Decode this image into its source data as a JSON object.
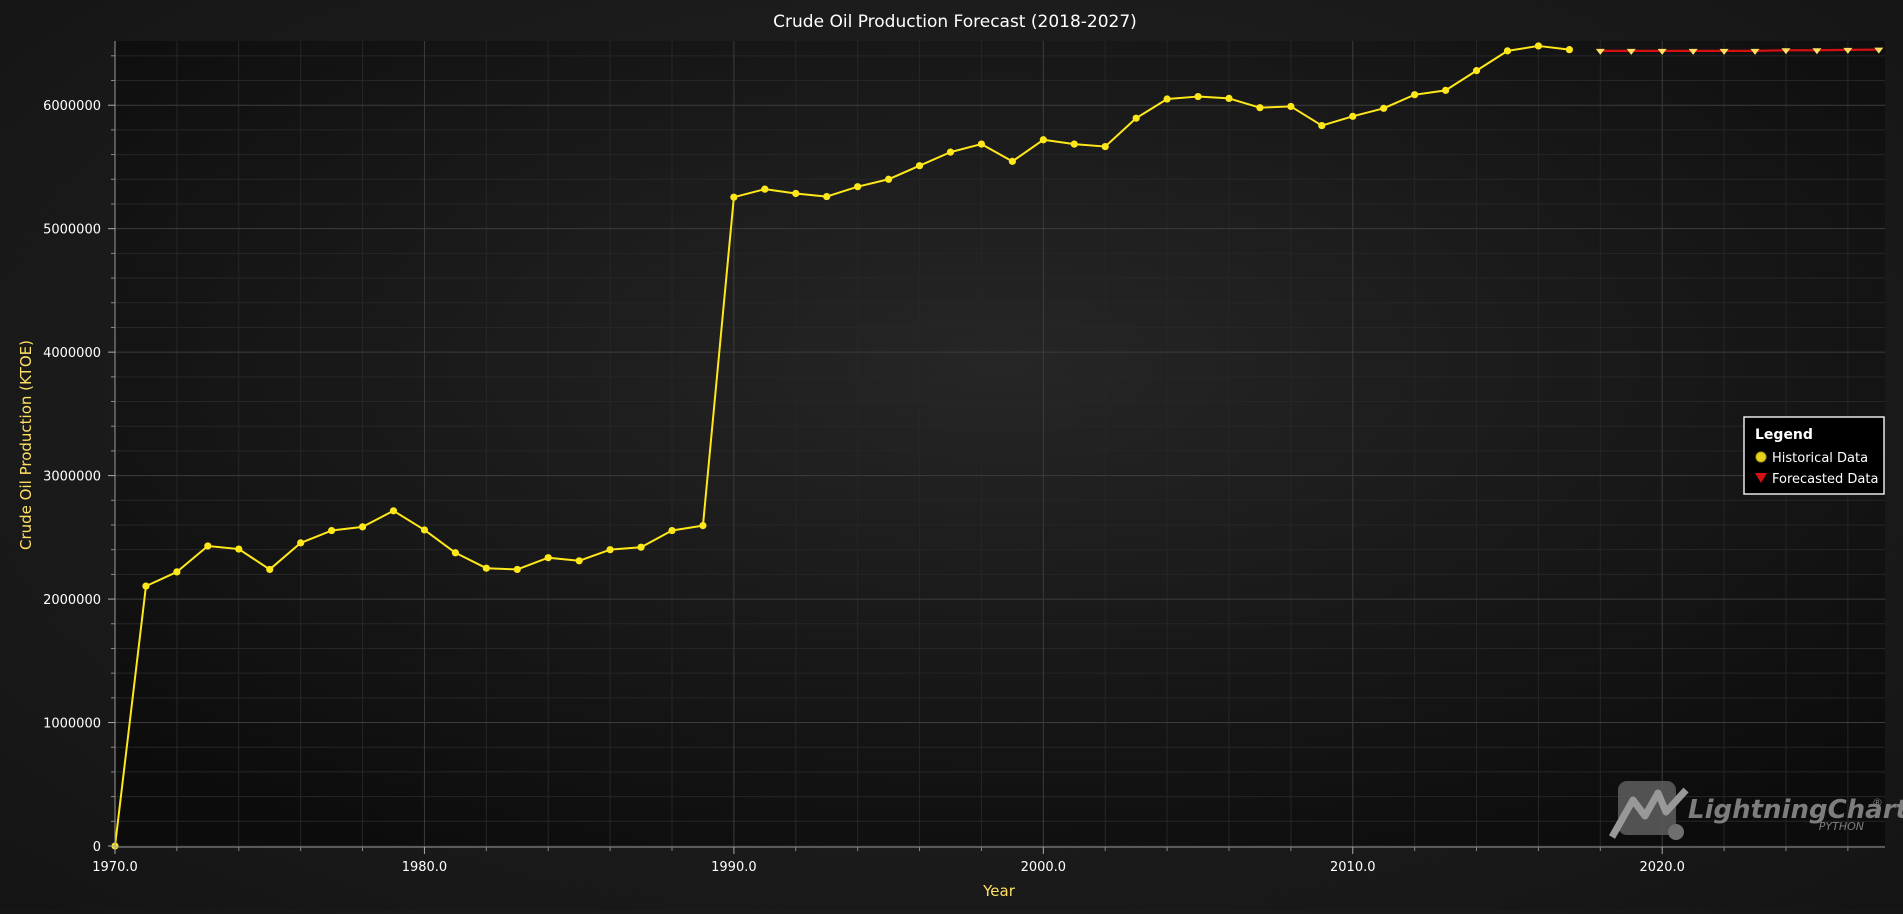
{
  "chart_data": {
    "type": "line",
    "title": "Crude Oil Production Forecast (2018-2027)",
    "xlabel": "Year",
    "ylabel": "Crude Oil Production (KTOE)",
    "xlim": [
      1970,
      2027.2
    ],
    "ylim": [
      0,
      6520000
    ],
    "x_ticks": [
      1970,
      1980,
      1990,
      2000,
      2010,
      2020
    ],
    "x_tick_labels": [
      "1970.0",
      "1980.0",
      "1990.0",
      "2000.0",
      "2010.0",
      "2020.0"
    ],
    "y_ticks": [
      0,
      1000000,
      2000000,
      3000000,
      4000000,
      5000000,
      6000000
    ],
    "y_tick_labels": [
      "0",
      "1000000",
      "2000000",
      "3000000",
      "4000000",
      "5000000",
      "6000000"
    ],
    "grid": true,
    "legend_position": "right",
    "series": [
      {
        "name": "Historical Data",
        "color": "#ffe81a",
        "marker": "circle",
        "x": [
          1970,
          1971,
          1972,
          1973,
          1974,
          1975,
          1976,
          1977,
          1978,
          1979,
          1980,
          1981,
          1982,
          1983,
          1984,
          1985,
          1986,
          1987,
          1988,
          1989,
          1990,
          1991,
          1992,
          1993,
          1994,
          1995,
          1996,
          1997,
          1998,
          1999,
          2000,
          2001,
          2002,
          2003,
          2004,
          2005,
          2006,
          2007,
          2008,
          2009,
          2010,
          2011,
          2012,
          2013,
          2014,
          2015,
          2016,
          2017
        ],
        "y": [
          0,
          2105000,
          2220000,
          2430000,
          2405000,
          2240000,
          2455000,
          2555000,
          2585000,
          2715000,
          2560000,
          2375000,
          2250000,
          2240000,
          2335000,
          2310000,
          2400000,
          2420000,
          2555000,
          2595000,
          5255000,
          5320000,
          5285000,
          5260000,
          5340000,
          5400000,
          5510000,
          5620000,
          5685000,
          5545000,
          5720000,
          5685000,
          5665000,
          5895000,
          6050000,
          6070000,
          6055000,
          5980000,
          5990000,
          5835000,
          5910000,
          5975000,
          6085000,
          6120000,
          6280000,
          6440000,
          6480000,
          6450000
        ]
      },
      {
        "name": "Forecasted Data",
        "color": "#d41010",
        "marker": "triangle-down",
        "marker_color": "#ffe066",
        "x": [
          2018,
          2019,
          2020,
          2021,
          2022,
          2023,
          2024,
          2025,
          2026,
          2027
        ],
        "y": [
          6440000,
          6440000,
          6440000,
          6440000,
          6440000,
          6440000,
          6445000,
          6445000,
          6448000,
          6450000
        ]
      }
    ]
  },
  "legend": {
    "title": "Legend",
    "items": [
      {
        "label": "Historical Data",
        "icon": "yellow-circle-icon",
        "color": "#e6d21a"
      },
      {
        "label": "Forecasted Data",
        "icon": "red-triangle-down-icon",
        "color": "#d41010"
      }
    ]
  },
  "watermark": {
    "brand": "LightningChart",
    "registered": "®",
    "sub": "PYTHON"
  }
}
